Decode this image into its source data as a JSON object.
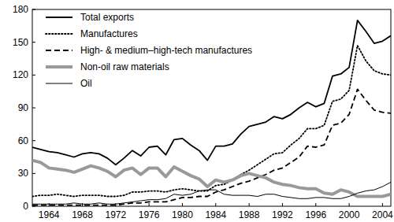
{
  "chart_data": {
    "type": "line",
    "x": [
      1962,
      1963,
      1964,
      1965,
      1966,
      1967,
      1968,
      1969,
      1970,
      1971,
      1972,
      1973,
      1974,
      1975,
      1976,
      1977,
      1978,
      1979,
      1980,
      1981,
      1982,
      1983,
      1984,
      1985,
      1986,
      1987,
      1988,
      1989,
      1990,
      1991,
      1992,
      1993,
      1994,
      1995,
      1996,
      1997,
      1998,
      1999,
      2000,
      2001,
      2002,
      2003,
      2004,
      2005
    ],
    "xlim": [
      1962,
      2005
    ],
    "xticks": [
      1964,
      1968,
      1972,
      1976,
      1980,
      1984,
      1988,
      1992,
      1996,
      2000,
      2004
    ],
    "ylim": [
      0,
      180
    ],
    "yticks": [
      0,
      30,
      60,
      90,
      120,
      150,
      180
    ],
    "legend": "top-left",
    "series": [
      {
        "name": "Total exports",
        "color": "#000000",
        "line_style": "solid",
        "values": [
          54,
          52,
          50,
          49,
          47,
          45,
          48,
          49,
          48,
          44,
          38,
          44,
          51,
          46,
          54,
          55,
          47,
          61,
          62,
          56,
          51,
          42,
          55,
          55,
          57,
          66,
          73,
          75,
          77,
          82,
          80,
          84,
          90,
          95,
          91,
          94,
          119,
          121,
          127,
          170,
          160,
          149,
          151,
          156
        ]
      },
      {
        "name": "Manufactures",
        "color": "#000000",
        "line_style": "dotted",
        "values": [
          9,
          10,
          10,
          11,
          10,
          9,
          10,
          10,
          10,
          9,
          9,
          10,
          13,
          13,
          14,
          14,
          13,
          15,
          16,
          15,
          14,
          14,
          19,
          20,
          24,
          29,
          33,
          38,
          43,
          48,
          49,
          56,
          62,
          71,
          71,
          74,
          96,
          98,
          106,
          147,
          133,
          124,
          121,
          120
        ]
      },
      {
        "name": "High- & medium–high-tech manufactures",
        "color": "#000000",
        "line_style": "dashed",
        "values": [
          1,
          1,
          1,
          1,
          1,
          1,
          1,
          1,
          1,
          1,
          1,
          2,
          3,
          3,
          4,
          4,
          4,
          6,
          8,
          8,
          9,
          9,
          13,
          15,
          18,
          21,
          23,
          26,
          29,
          33,
          35,
          40,
          45,
          55,
          54,
          56,
          74,
          76,
          84,
          107,
          97,
          88,
          86,
          85
        ]
      },
      {
        "name": "Non-oil raw materials",
        "color": "#999999",
        "line_style": "solid",
        "values": [
          42,
          40,
          35,
          34,
          33,
          31,
          34,
          37,
          35,
          32,
          27,
          33,
          35,
          29,
          35,
          35,
          27,
          36,
          32,
          28,
          25,
          18,
          24,
          22,
          24,
          28,
          30,
          28,
          26,
          22,
          20,
          19,
          17,
          16,
          16,
          12,
          11,
          15,
          13,
          9,
          9,
          9,
          9,
          11
        ]
      },
      {
        "name": "Oil",
        "color": "#000000",
        "line_style": "solid",
        "values": [
          2,
          2,
          2,
          2,
          2,
          3,
          2,
          2,
          3,
          2,
          2,
          3,
          4,
          5,
          6,
          6,
          7,
          11,
          10,
          11,
          14,
          15,
          15,
          11,
          10,
          10,
          10,
          9,
          11,
          11,
          9,
          8,
          7,
          7,
          8,
          8,
          7,
          7,
          9,
          12,
          14,
          15,
          18,
          22
        ]
      }
    ]
  }
}
